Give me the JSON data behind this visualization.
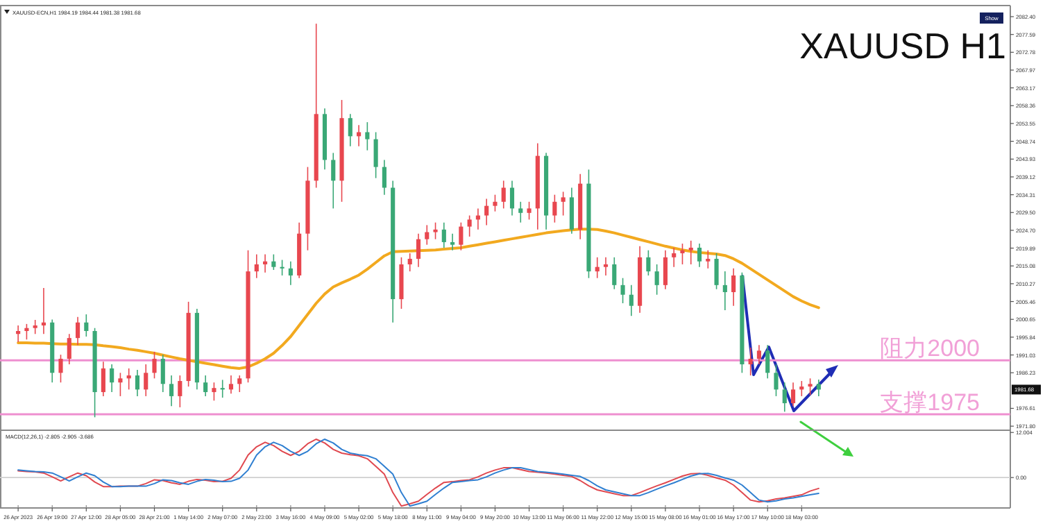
{
  "chart_data": [
    {
      "type": "candlestick",
      "title": "XAUUSD H1",
      "subtitle": "XAUUSD-ECN,H1 1984.19 1984.44 1981.38 1981.68",
      "categories": [
        null,
        null,
        null,
        null,
        null,
        null,
        null,
        null,
        null,
        null,
        null,
        null,
        null,
        null,
        null,
        null,
        null,
        null,
        null,
        null,
        null,
        null,
        null,
        null,
        null,
        null,
        null,
        null,
        null,
        null,
        null,
        null,
        null,
        null,
        null,
        null,
        null,
        null,
        null,
        null,
        null,
        null,
        null,
        null,
        null,
        null,
        null,
        null,
        null,
        null,
        null,
        null,
        null,
        null,
        null,
        null,
        null,
        null,
        null,
        null,
        null,
        null,
        null,
        null,
        null,
        null,
        null,
        null,
        null,
        null,
        null,
        null,
        null,
        null,
        null,
        null,
        null,
        null,
        null,
        null,
        null,
        null,
        null,
        null,
        null,
        null,
        null,
        null,
        null,
        null,
        null,
        null,
        null,
        null,
        null
      ],
      "ohlc": [
        [
          1996.7,
          1999.0,
          1994.5,
          1997.5
        ],
        [
          1997.5,
          1999.4,
          1995.2,
          1998.3
        ],
        [
          1998.3,
          2000.5,
          1996.7,
          1999.0
        ],
        [
          1999.0,
          2009.1,
          1996.7,
          1999.8
        ],
        [
          1999.8,
          2000.6,
          1983.6,
          1986.2
        ],
        [
          1986.2,
          1991.1,
          1983.6,
          1990.0
        ],
        [
          1990.0,
          1996.7,
          1988.5,
          1995.6
        ],
        [
          1995.6,
          2001.3,
          1993.7,
          1999.8
        ],
        [
          1999.8,
          2002.0,
          1996.0,
          1997.5
        ],
        [
          1997.5,
          1998.3,
          1974.2,
          1981.0
        ],
        [
          1981.0,
          1989.2,
          1979.9,
          1987.4
        ],
        [
          1987.4,
          1988.5,
          1981.0,
          1983.6
        ],
        [
          1983.6,
          1986.2,
          1979.9,
          1984.7
        ],
        [
          1984.7,
          1987.4,
          1981.7,
          1985.5
        ],
        [
          1985.5,
          1987.0,
          1979.9,
          1981.7
        ],
        [
          1981.7,
          1988.5,
          1979.9,
          1986.2
        ],
        [
          1986.2,
          1991.9,
          1984.7,
          1990.0
        ],
        [
          1990.0,
          1991.1,
          1981.0,
          1983.2
        ],
        [
          1983.2,
          1985.5,
          1977.2,
          1979.9
        ],
        [
          1979.9,
          1985.5,
          1976.9,
          1984.0
        ],
        [
          1984.0,
          2005.4,
          1982.5,
          2002.4
        ],
        [
          2002.4,
          2003.5,
          1981.7,
          1983.6
        ],
        [
          1983.6,
          1985.5,
          1979.9,
          1981.0
        ],
        [
          1981.0,
          1983.6,
          1978.7,
          1982.1
        ],
        [
          1982.1,
          1984.3,
          1979.5,
          1981.7
        ],
        [
          1981.7,
          1985.5,
          1980.6,
          1983.2
        ],
        [
          1983.2,
          1985.5,
          1981.0,
          1984.7
        ],
        [
          1984.7,
          2019.3,
          1983.6,
          2013.6
        ],
        [
          2013.6,
          2018.2,
          2011.8,
          2015.5
        ],
        [
          2015.5,
          2018.2,
          2013.3,
          2016.3
        ],
        [
          2016.3,
          2018.2,
          2014.0,
          2014.8
        ],
        [
          2014.8,
          2016.7,
          2012.5,
          2014.4
        ],
        [
          2014.4,
          2016.3,
          2009.9,
          2012.5
        ],
        [
          2012.5,
          2026.8,
          2011.8,
          2023.8
        ],
        [
          2023.8,
          2041.8,
          2019.3,
          2038.1
        ],
        [
          2038.1,
          2080.5,
          2036.2,
          2056.1
        ],
        [
          2056.1,
          2057.6,
          2041.1,
          2043.7
        ],
        [
          2043.7,
          2045.6,
          2030.6,
          2038.1
        ],
        [
          2038.1,
          2059.9,
          2032.4,
          2055.0
        ],
        [
          2055.0,
          2056.1,
          2047.4,
          2050.1
        ],
        [
          2050.1,
          2053.1,
          2047.4,
          2051.2
        ],
        [
          2051.2,
          2053.9,
          2046.3,
          2049.3
        ],
        [
          2049.3,
          2051.2,
          2038.8,
          2041.8
        ],
        [
          2041.8,
          2043.7,
          2034.3,
          2036.2
        ],
        [
          2036.2,
          2038.1,
          1999.8,
          2006.1
        ],
        [
          2006.1,
          2017.4,
          2003.5,
          2015.5
        ],
        [
          2015.5,
          2018.5,
          2013.6,
          2017.0
        ],
        [
          2017.0,
          2023.8,
          2014.8,
          2022.3
        ],
        [
          2022.3,
          2026.1,
          2020.8,
          2024.2
        ],
        [
          2024.2,
          2026.8,
          2022.3,
          2024.9
        ],
        [
          2024.9,
          2026.8,
          2020.0,
          2021.5
        ],
        [
          2021.5,
          2023.8,
          2019.3,
          2020.8
        ],
        [
          2020.8,
          2026.8,
          2019.3,
          2025.7
        ],
        [
          2025.7,
          2028.7,
          2023.0,
          2027.6
        ],
        [
          2027.6,
          2030.6,
          2024.9,
          2028.7
        ],
        [
          2028.7,
          2033.2,
          2026.1,
          2031.3
        ],
        [
          2031.3,
          2034.3,
          2029.8,
          2032.4
        ],
        [
          2032.4,
          2038.1,
          2030.6,
          2036.2
        ],
        [
          2036.2,
          2038.1,
          2028.7,
          2030.6
        ],
        [
          2030.6,
          2032.4,
          2026.8,
          2029.4
        ],
        [
          2029.4,
          2032.4,
          2027.6,
          2030.6
        ],
        [
          2030.6,
          2048.2,
          2024.9,
          2044.8
        ],
        [
          2044.8,
          2045.6,
          2024.9,
          2028.7
        ],
        [
          2028.7,
          2034.3,
          2026.8,
          2032.4
        ],
        [
          2032.4,
          2035.1,
          2028.7,
          2033.6
        ],
        [
          2033.6,
          2036.2,
          2023.8,
          2024.9
        ],
        [
          2024.9,
          2039.9,
          2022.3,
          2037.3
        ],
        [
          2037.3,
          2041.1,
          2011.8,
          2013.6
        ],
        [
          2013.6,
          2017.4,
          2011.8,
          2014.8
        ],
        [
          2014.8,
          2017.4,
          2012.5,
          2015.5
        ],
        [
          2015.5,
          2017.4,
          2008.8,
          2009.9
        ],
        [
          2009.9,
          2011.8,
          2005.0,
          2007.3
        ],
        [
          2007.3,
          2009.9,
          2001.6,
          2004.3
        ],
        [
          2004.3,
          2020.4,
          2002.4,
          2017.4
        ],
        [
          2017.4,
          2019.3,
          2012.5,
          2013.6
        ],
        [
          2013.6,
          2015.5,
          2007.3,
          2009.9
        ],
        [
          2009.9,
          2019.3,
          2008.8,
          2017.4
        ],
        [
          2017.4,
          2020.0,
          2014.8,
          2018.5
        ],
        [
          2018.5,
          2021.1,
          2015.5,
          2019.3
        ],
        [
          2019.3,
          2021.9,
          2015.5,
          2020.0
        ],
        [
          2020.0,
          2021.1,
          2014.8,
          2016.3
        ],
        [
          2016.3,
          2019.3,
          2014.4,
          2017.0
        ],
        [
          2017.0,
          2018.5,
          2008.8,
          2009.9
        ],
        [
          2009.9,
          2013.6,
          2003.1,
          2008.0
        ],
        [
          2008.0,
          2014.4,
          2004.3,
          2012.5
        ],
        [
          2012.5,
          2013.3,
          1986.2,
          1988.5
        ],
        [
          1988.5,
          1993.0,
          1985.5,
          1990.0
        ],
        [
          1990.0,
          1993.7,
          1988.5,
          1992.2
        ],
        [
          1992.2,
          1993.7,
          1984.7,
          1986.2
        ],
        [
          1986.2,
          1988.5,
          1979.9,
          1981.7
        ],
        [
          1981.7,
          1983.6,
          1975.7,
          1978.0
        ],
        [
          1978.0,
          1983.6,
          1977.2,
          1981.7
        ],
        [
          1981.7,
          1984.0,
          1979.9,
          1982.5
        ],
        [
          1982.5,
          1984.7,
          1980.2,
          1983.2
        ],
        [
          1983.2,
          1984.4,
          1979.9,
          1981.68
        ]
      ],
      "colors": [
        "#e8474f",
        "#e8474f",
        "#e8474f",
        "#e8474f",
        "#3aa876",
        "#e8474f",
        "#e8474f",
        "#e8474f",
        "#3aa876",
        "#3aa876",
        "#e8474f",
        "#3aa876",
        "#e8474f",
        "#e8474f",
        "#3aa876",
        "#e8474f",
        "#e8474f",
        "#3aa876",
        "#3aa876",
        "#e8474f",
        "#e8474f",
        "#3aa876",
        "#3aa876",
        "#e8474f",
        "#3aa876",
        "#e8474f",
        "#e8474f",
        "#e8474f",
        "#e8474f",
        "#e8474f",
        "#3aa876",
        "#3aa876",
        "#3aa876",
        "#e8474f",
        "#e8474f",
        "#e8474f",
        "#3aa876",
        "#3aa876",
        "#e8474f",
        "#3aa876",
        "#e8474f",
        "#3aa876",
        "#3aa876",
        "#3aa876",
        "#3aa876",
        "#e8474f",
        "#e8474f",
        "#e8474f",
        "#e8474f",
        "#e8474f",
        "#3aa876",
        "#3aa876",
        "#e8474f",
        "#e8474f",
        "#e8474f",
        "#e8474f",
        "#e8474f",
        "#e8474f",
        "#3aa876",
        "#3aa876",
        "#e8474f",
        "#e8474f",
        "#3aa876",
        "#e8474f",
        "#e8474f",
        "#3aa876",
        "#e8474f",
        "#3aa876",
        "#e8474f",
        "#e8474f",
        "#3aa876",
        "#3aa876",
        "#3aa876",
        "#e8474f",
        "#3aa876",
        "#3aa876",
        "#e8474f",
        "#e8474f",
        "#e8474f",
        "#e8474f",
        "#3aa876",
        "#e8474f",
        "#3aa876",
        "#3aa876",
        "#e8474f",
        "#3aa876",
        "#e8474f",
        "#e8474f",
        "#3aa876",
        "#3aa876",
        "#3aa876",
        "#e8474f",
        "#e8474f",
        "#e8474f",
        "#3aa876"
      ],
      "series": [
        {
          "type": "line",
          "color": "#f2a91f",
          "values": [
            1994.3,
            1994.3,
            1994.2,
            1994.2,
            1994.1,
            1994.0,
            1994.0,
            1993.9,
            1993.9,
            1993.8,
            1993.5,
            1993.3,
            1993.0,
            1992.6,
            1992.3,
            1991.9,
            1991.5,
            1991.0,
            1990.5,
            1990.0,
            1989.6,
            1989.2,
            1988.8,
            1988.4,
            1988.0,
            1987.6,
            1987.4,
            1987.8,
            1988.8,
            1990.0,
            1991.5,
            1993.6,
            1996.0,
            1999.0,
            2002.0,
            2005.0,
            2007.5,
            2009.4,
            2010.5,
            2011.5,
            2012.6,
            2014.2,
            2016.0,
            2017.8,
            2018.9,
            2019.0,
            2019.1,
            2019.2,
            2019.3,
            2019.4,
            2019.6,
            2019.8,
            2020.0,
            2020.4,
            2020.8,
            2021.2,
            2021.6,
            2022.0,
            2022.4,
            2022.8,
            2023.2,
            2023.6,
            2024.0,
            2024.3,
            2024.6,
            2024.8,
            2025.0,
            2025.0,
            2024.9,
            2024.5,
            2024.0,
            2023.4,
            2022.8,
            2022.2,
            2021.6,
            2021.0,
            2020.4,
            2019.9,
            2019.4,
            2019.0,
            2018.7,
            2018.5,
            2018.3,
            2017.9,
            2017.0,
            2015.8,
            2014.3,
            2012.8,
            2011.3,
            2009.8,
            2008.3,
            2006.8,
            2005.6,
            2004.6,
            2003.8
          ]
        }
      ],
      "ylim": [
        1970.7,
        2085.4
      ],
      "yticks": [
        {
          "value": 2082.4,
          "label": "2082.40"
        },
        2077.59,
        2072.78,
        2067.97,
        2063.17,
        2058.36,
        2053.55,
        2048.74,
        2043.93,
        2039.12,
        2034.31,
        {
          "value": 2029.5,
          "label": "2029.50"
        },
        {
          "value": 2024.7,
          "label": "2024.70"
        },
        2019.89,
        2015.08,
        2010.27,
        2005.46,
        2000.65,
        1995.84,
        1991.03,
        1986.23,
        1976.61,
        {
          "value": 1971.8,
          "label": "1971.80"
        }
      ],
      "tick_labels": "y",
      "ref_lines": [
        {
          "axis": "y",
          "value": 1989.6,
          "label": "阻力2000",
          "color": "#ee8fd0"
        },
        {
          "axis": "y",
          "value": 1975.0,
          "label": "支撑1975",
          "color": "#ee8fd0"
        }
      ],
      "annotations": [
        "1981.68",
        "Show"
      ]
    },
    {
      "type": "line",
      "title": "MACD(12,26,1) -2.805 -2.905 -3.686",
      "categories": [
        "26 Apr 2023",
        null,
        null,
        null,
        "26 Apr 19:00",
        null,
        null,
        null,
        "27 Apr 12:00",
        null,
        null,
        null,
        "28 Apr 05:00",
        null,
        null,
        null,
        "28 Apr 21:00",
        null,
        null,
        null,
        "1 May 14:00",
        null,
        null,
        null,
        "2 May 07:00",
        null,
        null,
        null,
        "2 May 23:00",
        null,
        null,
        null,
        "3 May 16:00",
        null,
        null,
        null,
        "4 May 09:00",
        null,
        null,
        null,
        "5 May 02:00",
        null,
        null,
        null,
        "5 May 18:00",
        null,
        null,
        null,
        "8 May 11:00",
        null,
        null,
        null,
        "9 May 04:00",
        null,
        null,
        null,
        "9 May 20:00",
        null,
        null,
        null,
        "10 May 13:00",
        null,
        null,
        null,
        "11 May 06:00",
        null,
        null,
        null,
        "11 May 22:00",
        null,
        null,
        null,
        "12 May 15:00",
        null,
        null,
        null,
        "15 May 08:00",
        null,
        null,
        null,
        "16 May 01:00",
        null,
        null,
        null,
        "16 May 17:00",
        null,
        null,
        null,
        "17 May 10:00",
        null,
        null,
        null,
        "18 May 03:00",
        null,
        null
      ],
      "series": [
        {
          "color": "#e0484f",
          "values": [
            1.8,
            1.6,
            1.5,
            1.2,
            0.2,
            -0.9,
            0.2,
            1.2,
            0.5,
            -1.2,
            -2.4,
            -2.4,
            -2.3,
            -2.3,
            -2.3,
            -1.6,
            -0.6,
            -0.8,
            -1.4,
            -1.8,
            -1.0,
            -0.5,
            -0.7,
            -1.1,
            -1.0,
            -0.2,
            2.0,
            6.0,
            8.2,
            9.4,
            8.5,
            7.0,
            5.9,
            7.0,
            9.0,
            10.2,
            9.2,
            7.5,
            6.5,
            6.1,
            5.8,
            5.0,
            3.0,
            0.9,
            -4.0,
            -7.6,
            -7.0,
            -6.3,
            -4.5,
            -2.8,
            -1.3,
            -1.1,
            -0.8,
            -0.6,
            0.2,
            1.2,
            2.0,
            2.6,
            2.6,
            2.1,
            1.6,
            1.4,
            1.2,
            0.9,
            0.6,
            0.3,
            -0.8,
            -2.2,
            -3.3,
            -3.8,
            -4.3,
            -4.8,
            -4.8,
            -4.0,
            -3.1,
            -2.2,
            -1.4,
            -0.5,
            0.4,
            1.0,
            1.1,
            0.6,
            -0.1,
            -0.7,
            -2.0,
            -4.0,
            -6.0,
            -6.5,
            -6.2,
            -5.7,
            -5.4,
            -5.0,
            -4.6,
            -3.6,
            -2.9
          ]
        },
        {
          "color": "#2f7fd1",
          "values": [
            2.0,
            1.8,
            1.6,
            1.5,
            1.2,
            0.2,
            -0.9,
            0.2,
            1.2,
            0.5,
            -1.2,
            -2.4,
            -2.4,
            -2.3,
            -2.3,
            -2.3,
            -1.6,
            -0.6,
            -0.8,
            -1.4,
            -1.8,
            -1.0,
            -0.5,
            -0.7,
            -1.1,
            -1.0,
            -0.2,
            2.0,
            6.0,
            8.2,
            9.4,
            8.5,
            7.0,
            5.9,
            7.0,
            9.0,
            10.2,
            9.2,
            7.5,
            6.5,
            6.1,
            5.8,
            5.0,
            3.0,
            0.9,
            -4.0,
            -7.6,
            -7.0,
            -6.3,
            -4.5,
            -2.8,
            -1.3,
            -1.1,
            -0.8,
            -0.6,
            0.2,
            1.2,
            2.0,
            2.6,
            2.6,
            2.1,
            1.6,
            1.4,
            1.2,
            0.9,
            0.6,
            0.3,
            -0.8,
            -2.2,
            -3.3,
            -3.8,
            -4.3,
            -4.8,
            -4.8,
            -4.0,
            -3.1,
            -2.2,
            -1.4,
            -0.5,
            0.4,
            1.0,
            1.1,
            0.6,
            -0.1,
            -0.7,
            -2.0,
            -4.0,
            -6.0,
            -6.5,
            -6.2,
            -5.7,
            -5.4,
            -5.0,
            -4.6,
            -4.2
          ]
        }
      ],
      "ylim": [
        -8.1,
        12.6
      ],
      "yticks": [
        12.004,
        {
          "value": 0,
          "label": "0.00"
        }
      ],
      "ref_lines": [
        {
          "axis": "y",
          "value": 0,
          "color": "#cfcfcf"
        }
      ]
    }
  ]
}
